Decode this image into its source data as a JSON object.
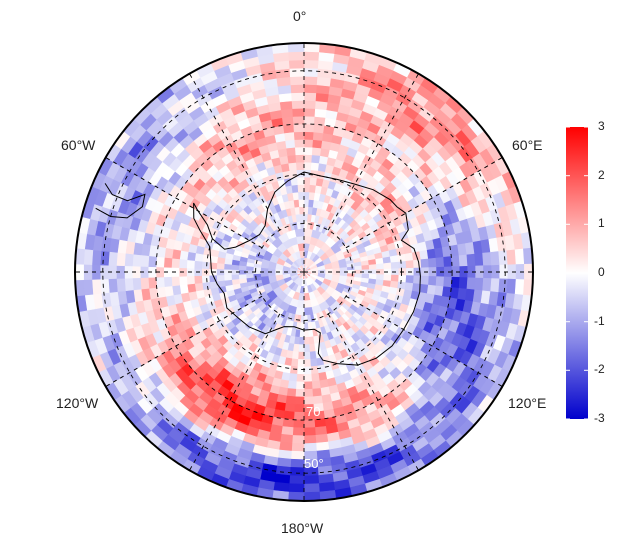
{
  "map": {
    "projection": "south-polar-stereographic",
    "lon_labels": {
      "top": "0°",
      "upper_left": "60°W",
      "upper_right": "60°E",
      "lower_left": "120°W",
      "lower_right": "120°E",
      "bottom": "180°W"
    },
    "lat_labels": {
      "inner": "70",
      "outer": "50°"
    },
    "graticule_lats": [
      -80,
      -70,
      -60,
      -50
    ],
    "graticule_lons": [
      0,
      30,
      60,
      90,
      120,
      150,
      180,
      210,
      240,
      270,
      300,
      330
    ],
    "field_description_colors": {
      "negative": "#0000cc",
      "zero": "#ffffff",
      "positive": "#ff0000"
    }
  },
  "colorbar": {
    "min": -3,
    "max": 3,
    "ticks": [
      "3",
      "2",
      "1",
      "0",
      "-1",
      "-2",
      "-3"
    ],
    "tick_values": [
      3,
      2,
      1,
      0,
      -1,
      -2,
      -3
    ]
  }
}
